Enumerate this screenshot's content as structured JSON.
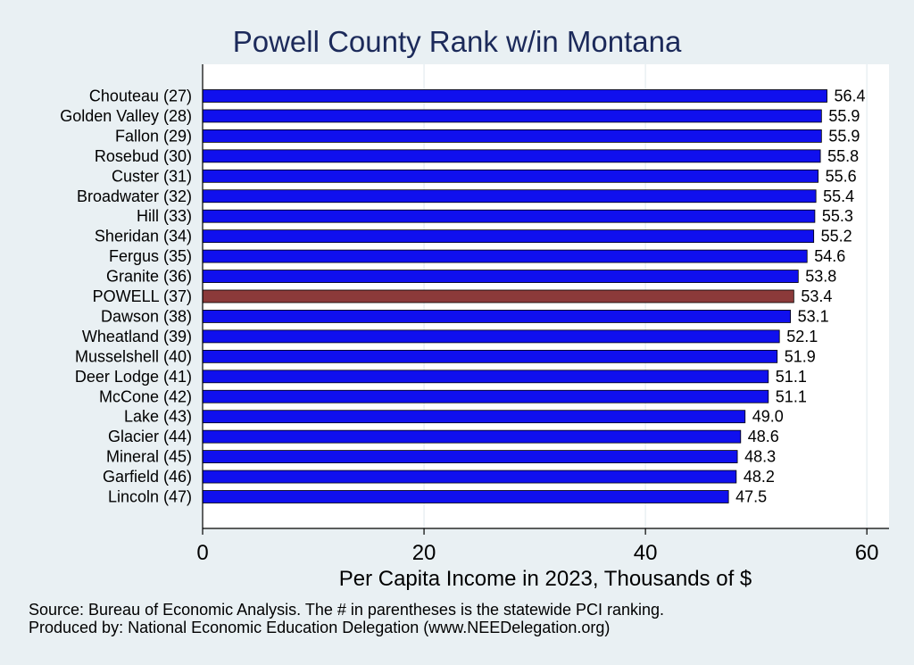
{
  "chart_data": {
    "type": "bar",
    "orientation": "horizontal",
    "title": "Powell County Rank w/in Montana",
    "xlabel": "Per Capita Income in 2023, Thousands of $",
    "ylabel": "",
    "xlim": [
      0,
      62
    ],
    "xticks": [
      0,
      20,
      40,
      60
    ],
    "grid": true,
    "categories": [
      "Chouteau (27)",
      "Golden Valley (28)",
      "Fallon (29)",
      "Rosebud (30)",
      "Custer (31)",
      "Broadwater (32)",
      "Hill (33)",
      "Sheridan (34)",
      "Fergus (35)",
      "Granite (36)",
      "POWELL (37)",
      "Dawson (38)",
      "Wheatland (39)",
      "Musselshell (40)",
      "Deer Lodge (41)",
      "McCone (42)",
      "Lake (43)",
      "Glacier (44)",
      "Mineral (45)",
      "Garfield (46)",
      "Lincoln (47)"
    ],
    "values": [
      56.4,
      55.9,
      55.9,
      55.8,
      55.6,
      55.4,
      55.3,
      55.2,
      54.6,
      53.8,
      53.4,
      53.1,
      52.1,
      51.9,
      51.1,
      51.1,
      49.0,
      48.6,
      48.3,
      48.2,
      47.5
    ],
    "value_labels": [
      "56.4",
      "55.9",
      "55.9",
      "55.8",
      "55.6",
      "55.4",
      "55.3",
      "55.2",
      "54.6",
      "53.8",
      "53.4",
      "53.1",
      "52.1",
      "51.9",
      "51.1",
      "51.1",
      "49.0",
      "48.6",
      "48.3",
      "48.2",
      "47.5"
    ],
    "highlight": "POWELL (37)",
    "colors": {
      "bar": "#1010ee",
      "highlight": "#8b3a3a",
      "outline": "#000000",
      "grid": "#e9f0f3",
      "title": "#1c2a5a"
    }
  },
  "notes": {
    "source": "Source: Bureau of Economic Analysis. The # in parentheses is the statewide PCI ranking.",
    "produced": "Produced by: National Economic Education Delegation (www.NEEDelegation.org)"
  }
}
